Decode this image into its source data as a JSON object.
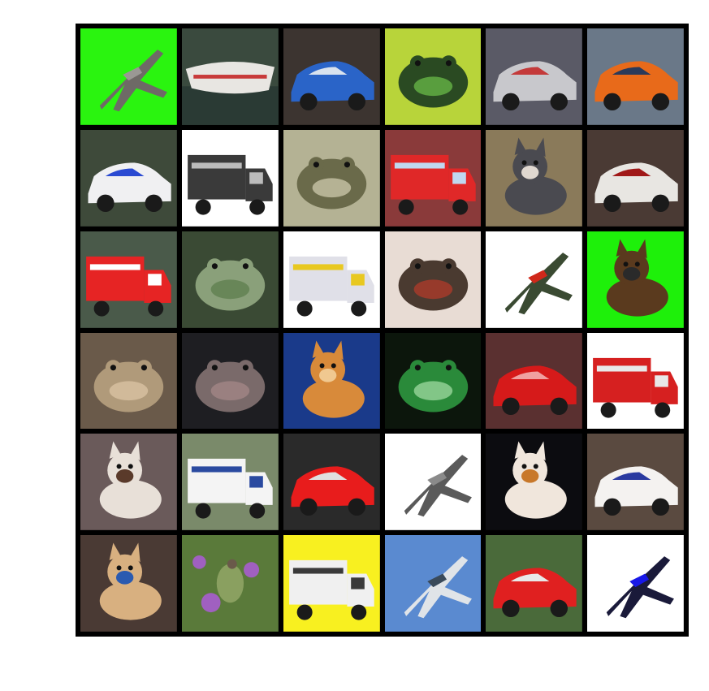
{
  "grid": {
    "rows": 6,
    "cols": 6,
    "tiles": [
      {
        "subject": "airplane",
        "bg": "#2af40f",
        "fg": "#6e6a66",
        "accent": "#9a9894",
        "shape": "plane"
      },
      {
        "subject": "boat",
        "bg": "#3a4a3e",
        "fg": "#e8e6e2",
        "accent": "#c83a3a",
        "shape": "boat"
      },
      {
        "subject": "car",
        "bg": "#3c3430",
        "fg": "#2a64c8",
        "accent": "#d8e2ee",
        "shape": "car"
      },
      {
        "subject": "frog",
        "bg": "#b8d43a",
        "fg": "#2a4a22",
        "accent": "#6ec24a",
        "shape": "frog"
      },
      {
        "subject": "car",
        "bg": "#5a5a66",
        "fg": "#c8c8cc",
        "accent": "#c43a3a",
        "shape": "car"
      },
      {
        "subject": "car",
        "bg": "#6a7888",
        "fg": "#e86a1a",
        "accent": "#2a3a5a",
        "shape": "car"
      },
      {
        "subject": "car",
        "bg": "#3e4a3a",
        "fg": "#f0f0f2",
        "accent": "#2a4ad2",
        "shape": "car"
      },
      {
        "subject": "truck",
        "bg": "#ffffff",
        "fg": "#3a3a3a",
        "accent": "#bcbcbc",
        "shape": "truck"
      },
      {
        "subject": "frog",
        "bg": "#b4b294",
        "fg": "#6a6a4a",
        "accent": "#d6d2b4",
        "shape": "frog"
      },
      {
        "subject": "truck",
        "bg": "#8a3a3a",
        "fg": "#e02828",
        "accent": "#c0d8f0",
        "shape": "truck"
      },
      {
        "subject": "dog",
        "bg": "#8a7a5a",
        "fg": "#4a4a50",
        "accent": "#e0d8d0",
        "shape": "animal"
      },
      {
        "subject": "car",
        "bg": "#4a3a34",
        "fg": "#e8e6e2",
        "accent": "#a01818",
        "shape": "car"
      },
      {
        "subject": "truck",
        "bg": "#4a5a4a",
        "fg": "#e62424",
        "accent": "#ffffff",
        "shape": "truck"
      },
      {
        "subject": "frog",
        "bg": "#3a4a34",
        "fg": "#8aa07a",
        "accent": "#5a7a4a",
        "shape": "frog"
      },
      {
        "subject": "truck",
        "bg": "#ffffff",
        "fg": "#e0e0e8",
        "accent": "#e8c820",
        "shape": "truck"
      },
      {
        "subject": "frog",
        "bg": "#e8dcd4",
        "fg": "#4a3a30",
        "accent": "#b83a2a",
        "shape": "frog"
      },
      {
        "subject": "airplane",
        "bg": "#ffffff",
        "fg": "#3a4a32",
        "accent": "#d0281a",
        "shape": "plane"
      },
      {
        "subject": "dog",
        "bg": "#1ef00a",
        "fg": "#5a3a1e",
        "accent": "#2a2a2a",
        "shape": "animal"
      },
      {
        "subject": "frog",
        "bg": "#6a5a4a",
        "fg": "#b09a7a",
        "accent": "#e0c8a8",
        "shape": "frog"
      },
      {
        "subject": "frog",
        "bg": "#1e1e22",
        "fg": "#7a6a6a",
        "accent": "#a88a8a",
        "shape": "frog"
      },
      {
        "subject": "cat",
        "bg": "#1a3a8a",
        "fg": "#d88a3a",
        "accent": "#f0c890",
        "shape": "animal"
      },
      {
        "subject": "frog",
        "bg": "#0c160c",
        "fg": "#2a8a3a",
        "accent": "#a8e0a8",
        "shape": "frog"
      },
      {
        "subject": "car",
        "bg": "#5a3030",
        "fg": "#d61a1a",
        "accent": "#f0a0a0",
        "shape": "car"
      },
      {
        "subject": "truck",
        "bg": "#ffffff",
        "fg": "#d62020",
        "accent": "#e8e8e8",
        "shape": "truck"
      },
      {
        "subject": "cat",
        "bg": "#6a5a5a",
        "fg": "#e8e0d8",
        "accent": "#5a3a2a",
        "shape": "animal"
      },
      {
        "subject": "truck",
        "bg": "#7a8a6a",
        "fg": "#f4f4f4",
        "accent": "#2a4aa0",
        "shape": "truck"
      },
      {
        "subject": "car",
        "bg": "#2a2a2a",
        "fg": "#e81c1c",
        "accent": "#e0e0e0",
        "shape": "car"
      },
      {
        "subject": "airplane",
        "bg": "#ffffff",
        "fg": "#5a5a5a",
        "accent": "#8a8a8a",
        "shape": "plane"
      },
      {
        "subject": "dog",
        "bg": "#0c0c10",
        "fg": "#f0e6dc",
        "accent": "#c8782a",
        "shape": "animal"
      },
      {
        "subject": "car",
        "bg": "#5a4a40",
        "fg": "#f4f2f0",
        "accent": "#2a3aa0",
        "shape": "car"
      },
      {
        "subject": "dog",
        "bg": "#4a3a34",
        "fg": "#d8b080",
        "accent": "#2a5ab0",
        "shape": "animal"
      },
      {
        "subject": "bird",
        "bg": "#5a7a3a",
        "fg": "#a060c0",
        "accent": "#8aa060",
        "shape": "bird"
      },
      {
        "subject": "truck",
        "bg": "#f8f020",
        "fg": "#f0f0f0",
        "accent": "#3a3a3a",
        "shape": "truck"
      },
      {
        "subject": "airplane",
        "bg": "#5a8ad0",
        "fg": "#e0e4e8",
        "accent": "#3a4a5a",
        "shape": "plane"
      },
      {
        "subject": "car",
        "bg": "#4a6a3a",
        "fg": "#e02020",
        "accent": "#e8e8e8",
        "shape": "car"
      },
      {
        "subject": "airplane",
        "bg": "#ffffff",
        "fg": "#1a1a3a",
        "accent": "#1818e8",
        "shape": "plane"
      }
    ]
  }
}
